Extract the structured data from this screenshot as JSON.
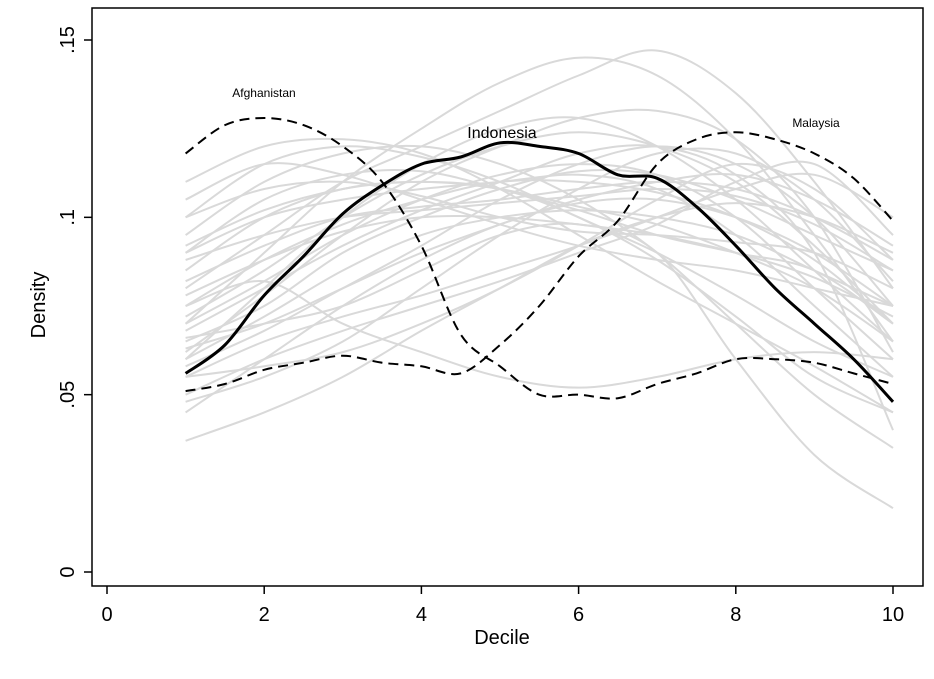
{
  "chart_data": {
    "type": "line",
    "xlabel": "Decile",
    "ylabel": "Density",
    "xlim": [
      0,
      10
    ],
    "ylim": [
      0,
      0.15
    ],
    "x_ticks": [
      0,
      2,
      4,
      6,
      8,
      10
    ],
    "x_tick_labels": [
      "0",
      "2",
      "4",
      "6",
      "8",
      "10"
    ],
    "y_ticks": [
      0,
      0.05,
      0.1,
      0.15
    ],
    "y_tick_labels": [
      "0",
      ".05",
      ".1",
      ".15"
    ],
    "grid": false,
    "legend": "none",
    "highlighted_series": [
      {
        "name": "Afghanistan",
        "style": "dashed",
        "color": "#000000",
        "x": [
          1,
          1.5,
          2,
          2.5,
          3,
          3.5,
          4,
          4.5,
          5,
          5.5,
          6,
          6.5,
          7,
          7.5,
          8,
          8.5,
          9,
          9.5,
          10
        ],
        "values": [
          0.118,
          0.126,
          0.128,
          0.126,
          0.12,
          0.11,
          0.092,
          0.067,
          0.058,
          0.05,
          0.05,
          0.049,
          0.053,
          0.056,
          0.06,
          0.06,
          0.059,
          0.056,
          0.053
        ]
      },
      {
        "name": "Indonesia",
        "style": "solid-bold",
        "color": "#000000",
        "x": [
          1,
          1.5,
          2,
          2.5,
          3,
          3.5,
          4,
          4.5,
          5,
          5.5,
          6,
          6.5,
          7,
          7.5,
          8,
          8.5,
          9,
          9.5,
          10
        ],
        "values": [
          0.056,
          0.064,
          0.078,
          0.089,
          0.101,
          0.109,
          0.115,
          0.117,
          0.121,
          0.12,
          0.118,
          0.112,
          0.111,
          0.103,
          0.092,
          0.08,
          0.07,
          0.06,
          0.048
        ]
      },
      {
        "name": "Malaysia",
        "style": "dashed",
        "color": "#000000",
        "x": [
          1,
          1.5,
          2,
          2.5,
          3,
          3.5,
          4,
          4.5,
          5,
          5.5,
          6,
          6.5,
          7,
          7.5,
          8,
          8.5,
          9,
          9.5,
          10
        ],
        "values": [
          0.051,
          0.053,
          0.057,
          0.059,
          0.061,
          0.059,
          0.058,
          0.056,
          0.064,
          0.075,
          0.089,
          0.099,
          0.115,
          0.122,
          0.124,
          0.122,
          0.118,
          0.111,
          0.099
        ]
      }
    ],
    "background_series_color": "#d9d9d9",
    "background_series_x": [
      1,
      2,
      3,
      4,
      5,
      6,
      7,
      8,
      9,
      10
    ],
    "background_series": [
      [
        0.037,
        0.045,
        0.055,
        0.068,
        0.08,
        0.092,
        0.1,
        0.104,
        0.1,
        0.09
      ],
      [
        0.045,
        0.06,
        0.075,
        0.088,
        0.098,
        0.104,
        0.105,
        0.1,
        0.09,
        0.075
      ],
      [
        0.11,
        0.12,
        0.122,
        0.118,
        0.108,
        0.095,
        0.082,
        0.07,
        0.058,
        0.045
      ],
      [
        0.1,
        0.115,
        0.12,
        0.117,
        0.11,
        0.1,
        0.09,
        0.078,
        0.065,
        0.055
      ],
      [
        0.06,
        0.08,
        0.1,
        0.115,
        0.125,
        0.128,
        0.12,
        0.105,
        0.085,
        0.065
      ],
      [
        0.07,
        0.09,
        0.11,
        0.125,
        0.138,
        0.145,
        0.14,
        0.122,
        0.095,
        0.065
      ],
      [
        0.08,
        0.095,
        0.11,
        0.12,
        0.13,
        0.14,
        0.147,
        0.135,
        0.11,
        0.08
      ],
      [
        0.065,
        0.075,
        0.09,
        0.1,
        0.108,
        0.113,
        0.112,
        0.105,
        0.095,
        0.085
      ],
      [
        0.09,
        0.105,
        0.112,
        0.113,
        0.108,
        0.102,
        0.095,
        0.09,
        0.085,
        0.07
      ],
      [
        0.055,
        0.065,
        0.072,
        0.078,
        0.085,
        0.092,
        0.1,
        0.108,
        0.112,
        0.1
      ],
      [
        0.05,
        0.06,
        0.068,
        0.075,
        0.082,
        0.09,
        0.098,
        0.11,
        0.115,
        0.095
      ],
      [
        0.075,
        0.088,
        0.098,
        0.105,
        0.11,
        0.11,
        0.107,
        0.1,
        0.088,
        0.07
      ],
      [
        0.085,
        0.1,
        0.108,
        0.11,
        0.108,
        0.103,
        0.098,
        0.09,
        0.08,
        0.065
      ],
      [
        0.105,
        0.115,
        0.112,
        0.105,
        0.098,
        0.092,
        0.088,
        0.085,
        0.08,
        0.075
      ],
      [
        0.06,
        0.072,
        0.085,
        0.095,
        0.1,
        0.102,
        0.1,
        0.095,
        0.085,
        0.075
      ],
      [
        0.07,
        0.082,
        0.095,
        0.105,
        0.112,
        0.115,
        0.112,
        0.1,
        0.08,
        0.06
      ],
      [
        0.09,
        0.1,
        0.105,
        0.108,
        0.11,
        0.112,
        0.108,
        0.095,
        0.075,
        0.055
      ],
      [
        0.068,
        0.08,
        0.092,
        0.102,
        0.11,
        0.118,
        0.12,
        0.112,
        0.09,
        0.04
      ],
      [
        0.055,
        0.058,
        0.062,
        0.07,
        0.08,
        0.092,
        0.105,
        0.115,
        0.108,
        0.088
      ],
      [
        0.095,
        0.11,
        0.118,
        0.12,
        0.115,
        0.105,
        0.09,
        0.07,
        0.05,
        0.035
      ],
      [
        0.082,
        0.092,
        0.1,
        0.103,
        0.105,
        0.108,
        0.11,
        0.108,
        0.1,
        0.088
      ],
      [
        0.072,
        0.085,
        0.1,
        0.112,
        0.12,
        0.124,
        0.12,
        0.11,
        0.092,
        0.07
      ],
      [
        0.063,
        0.07,
        0.08,
        0.09,
        0.098,
        0.105,
        0.11,
        0.112,
        0.105,
        0.092
      ],
      [
        0.1,
        0.108,
        0.11,
        0.106,
        0.1,
        0.096,
        0.095,
        0.093,
        0.09,
        0.08
      ],
      [
        0.058,
        0.068,
        0.08,
        0.092,
        0.105,
        0.115,
        0.12,
        0.115,
        0.1,
        0.075
      ],
      [
        0.088,
        0.095,
        0.1,
        0.102,
        0.104,
        0.106,
        0.108,
        0.106,
        0.098,
        0.085
      ],
      [
        0.048,
        0.055,
        0.065,
        0.08,
        0.095,
        0.108,
        0.118,
        0.118,
        0.105,
        0.082
      ],
      [
        0.078,
        0.088,
        0.096,
        0.1,
        0.1,
        0.098,
        0.095,
        0.09,
        0.083,
        0.072
      ],
      [
        0.062,
        0.078,
        0.095,
        0.11,
        0.12,
        0.128,
        0.13,
        0.122,
        0.1,
        0.062
      ],
      [
        0.092,
        0.102,
        0.108,
        0.11,
        0.108,
        0.1,
        0.088,
        0.072,
        0.055,
        0.045
      ],
      [
        0.075,
        0.082,
        0.07,
        0.062,
        0.055,
        0.052,
        0.055,
        0.06,
        0.062,
        0.06
      ],
      [
        0.066,
        0.07,
        0.075,
        0.085,
        0.095,
        0.098,
        0.09,
        0.06,
        0.033,
        0.018
      ]
    ],
    "annotations": [
      "Afghanistan",
      "Indonesia",
      "Malaysia"
    ]
  }
}
